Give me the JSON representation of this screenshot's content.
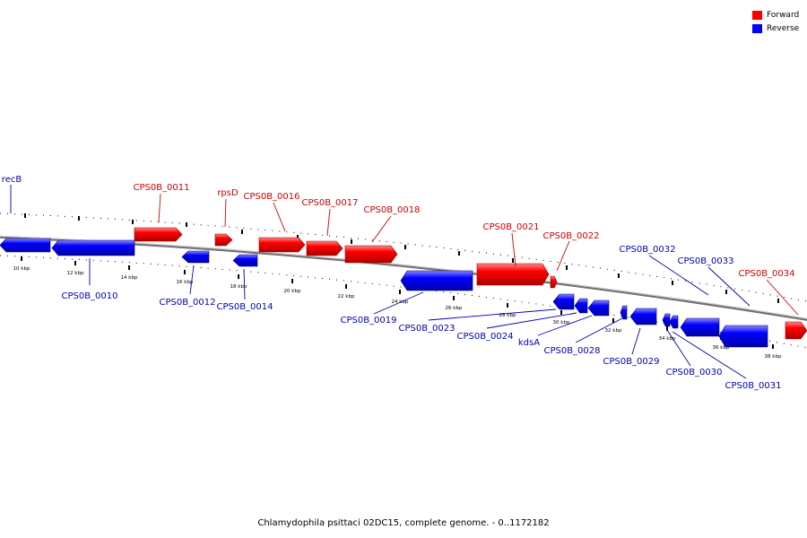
{
  "legend": {
    "forward_label": "Forward",
    "reverse_label": "Reverse",
    "forward_color": "#ff0000",
    "reverse_color": "#0000ff"
  },
  "caption": "Chlamydophila psittaci 02DC15, complete genome. - 0..1172182",
  "ticks": [
    "10 kbp",
    "12 kbp",
    "14 kbp",
    "16 kbp",
    "18 kbp",
    "20 kbp",
    "22 kbp",
    "24 kbp",
    "26 kbp",
    "28 kbp",
    "30 kbp",
    "32 kbp",
    "34 kbp",
    "36 kbp",
    "38 kbp"
  ],
  "genes": [
    {
      "label": "recB",
      "strand": "reverse"
    },
    {
      "label": "CPS0B_0010",
      "strand": "reverse"
    },
    {
      "label": "CPS0B_0011",
      "strand": "forward"
    },
    {
      "label": "CPS0B_0012",
      "strand": "reverse"
    },
    {
      "label": "rpsD",
      "strand": "forward"
    },
    {
      "label": "CPS0B_0014",
      "strand": "reverse"
    },
    {
      "label": "CPS0B_0016",
      "strand": "forward"
    },
    {
      "label": "CPS0B_0017",
      "strand": "forward"
    },
    {
      "label": "CPS0B_0018",
      "strand": "forward"
    },
    {
      "label": "CPS0B_0019",
      "strand": "reverse"
    },
    {
      "label": "CPS0B_0021",
      "strand": "forward"
    },
    {
      "label": "CPS0B_0022",
      "strand": "forward"
    },
    {
      "label": "CPS0B_0023",
      "strand": "reverse"
    },
    {
      "label": "CPS0B_0024",
      "strand": "reverse"
    },
    {
      "label": "kdsA",
      "strand": "reverse"
    },
    {
      "label": "CPS0B_0028",
      "strand": "reverse"
    },
    {
      "label": "CPS0B_0029",
      "strand": "reverse"
    },
    {
      "label": "CPS0B_0030",
      "strand": "reverse"
    },
    {
      "label": "CPS0B_0031",
      "strand": "reverse"
    },
    {
      "label": "CPS0B_0032",
      "strand": "reverse"
    },
    {
      "label": "CPS0B_0033",
      "strand": "reverse"
    },
    {
      "label": "CPS0B_0034",
      "strand": "forward"
    }
  ]
}
